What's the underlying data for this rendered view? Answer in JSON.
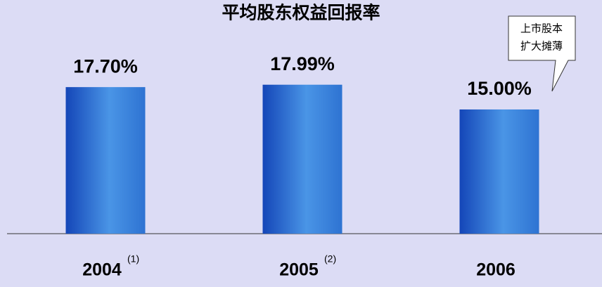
{
  "chart_data": {
    "type": "bar",
    "title": "平均股东权益回报率",
    "categories": [
      "2004",
      "2005",
      "2006"
    ],
    "category_notes": [
      "(1)",
      "(2)",
      null
    ],
    "values": [
      17.7,
      17.99,
      15.0
    ],
    "value_labels": [
      "17.70%",
      "17.99%",
      "15.00%"
    ],
    "color": "#2a6fd6",
    "ylim": [
      0,
      20
    ],
    "annotation": [
      "上市股本",
      "扩大摊薄"
    ]
  }
}
